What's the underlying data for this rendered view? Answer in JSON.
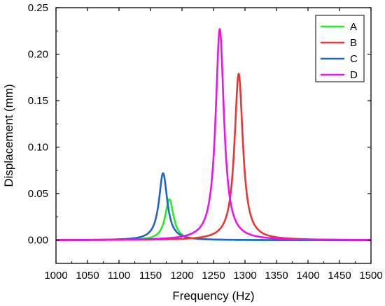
{
  "chart_data": {
    "type": "line",
    "xlabel": "Frequency (Hz)",
    "ylabel": "Displacement (mm)",
    "xlim": [
      1000,
      1500
    ],
    "ylim": [
      -0.025,
      0.25
    ],
    "xticks": [
      1000,
      1050,
      1100,
      1150,
      1200,
      1250,
      1300,
      1350,
      1400,
      1450,
      1500
    ],
    "yticks": [
      0.0,
      0.05,
      0.1,
      0.15,
      0.2,
      0.25
    ],
    "xtick_labels": [
      "1000",
      "1050",
      "1100",
      "1150",
      "1200",
      "1250",
      "1300",
      "1350",
      "1400",
      "1450",
      "1500"
    ],
    "ytick_labels": [
      "0.00",
      "0.05",
      "0.10",
      "0.15",
      "0.20",
      "0.25"
    ],
    "grid": false,
    "legend_position": "top-right",
    "series": [
      {
        "name": "A",
        "color": "#22ee22",
        "peak_x": 1180,
        "peak_y": 0.044
      },
      {
        "name": "B",
        "color": "#ee3333",
        "peak_x": 1290,
        "peak_y": 0.179
      },
      {
        "name": "C",
        "color": "#1f66cc",
        "peak_x": 1170,
        "peak_y": 0.072
      },
      {
        "name": "D",
        "color": "#ee11ee",
        "peak_x": 1260,
        "peak_y": 0.227
      }
    ]
  }
}
